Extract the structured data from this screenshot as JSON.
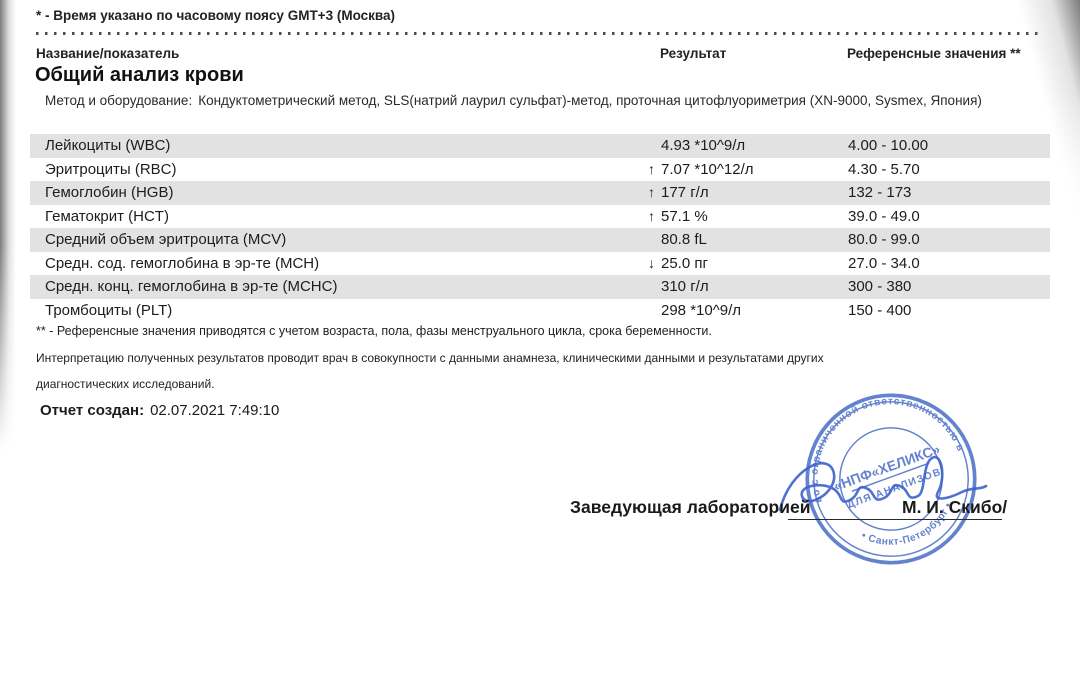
{
  "page": {
    "timezone_note": "* - Время указано по часовому поясу GMT+3 (Москва)"
  },
  "table": {
    "headers": {
      "name": "Название/показатель",
      "result": "Результат",
      "reference": "Референсные значения **"
    },
    "section_title": "Общий анализ крови",
    "method_label": "Метод и оборудование:",
    "method_text": "Кондуктометрический метод, SLS(натрий лаурил сульфат)-метод, проточная цитофлуориметрия (XN-9000, Sysmex, Япония)",
    "rows": [
      {
        "name": "Лейкоциты (WBC)",
        "flag": "",
        "result": "4.93 *10^9/л",
        "reference": "4.00 - 10.00",
        "shaded": true
      },
      {
        "name": "Эритроциты (RBC)",
        "flag": "↑",
        "result": "7.07 *10^12/л",
        "reference": "4.30 - 5.70",
        "shaded": false
      },
      {
        "name": "Гемоглобин (HGB)",
        "flag": "↑",
        "result": "177 г/л",
        "reference": "132 - 173",
        "shaded": true
      },
      {
        "name": "Гематокрит (HCT)",
        "flag": "↑",
        "result": "57.1 %",
        "reference": "39.0 - 49.0",
        "shaded": false
      },
      {
        "name": "Средний объем эритроцита (MCV)",
        "flag": "",
        "result": "80.8 fL",
        "reference": "80.0 - 99.0",
        "shaded": true
      },
      {
        "name": "Средн. сод. гемоглобина в эр-те (MCH)",
        "flag": "↓",
        "result": "25.0 пг",
        "reference": "27.0 - 34.0",
        "shaded": false
      },
      {
        "name": "Средн. конц. гемоглобина в эр-те (MCHC)",
        "flag": "",
        "result": "310 г/л",
        "reference": "300 - 380",
        "shaded": true
      },
      {
        "name": "Тромбоциты (PLT)",
        "flag": "",
        "result": "298 *10^9/л",
        "reference": "150 - 400",
        "shaded": false
      }
    ]
  },
  "footnotes": {
    "reference_note": "** - Референсные значения приводятся с учетом возраста, пола, фазы менструального цикла, срока беременности.",
    "interpretation_line1": "Интерпретацию полученных результатов проводит врач в совокупности с данными анамнеза, клиническими данными и результатами других",
    "interpretation_line2": "диагностических исследований."
  },
  "report": {
    "created_label": "Отчет создан:",
    "created_value": "02.07.2021  7:49:10"
  },
  "signature": {
    "role": "Заведующая лабораторией",
    "name": "М. И. Скибо/"
  },
  "stamp": {
    "color": "#4a6ec6",
    "ring_text_top": "во с ограниченной ответственностью в",
    "ring_text_bottom": "• Санкт-Петербург •",
    "center_line1": "«НПФ«ХЕЛИКС»",
    "center_line2": "ДЛЯ АНАЛИЗОВ"
  },
  "colors": {
    "row_stripe": "#e2e2e2",
    "stamp_blue": "#4a6ec6",
    "signature_blue": "#3c63cc",
    "text": "#1b1b1b"
  }
}
